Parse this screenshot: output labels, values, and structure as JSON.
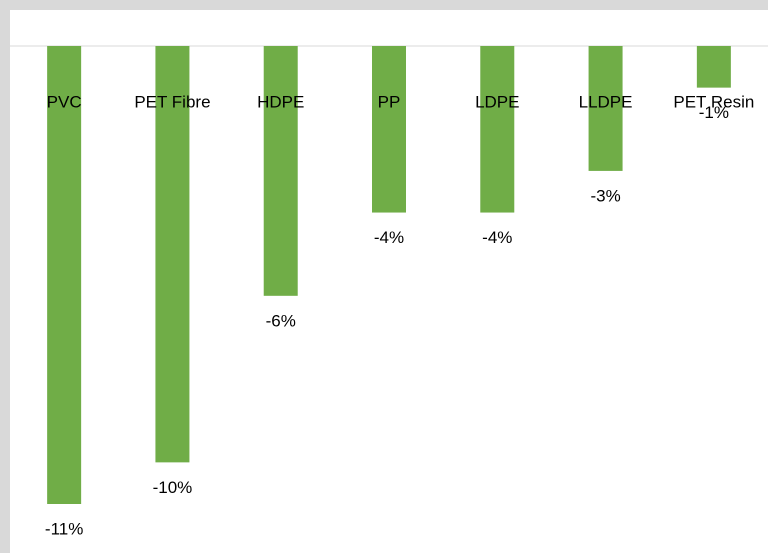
{
  "chart_data": {
    "type": "bar",
    "categories": [
      "PVC",
      "PET Fibre",
      "HDPE",
      "PP",
      "LDPE",
      "LLDPE",
      "PET Resin"
    ],
    "values": [
      -11,
      -10,
      -6,
      -4,
      -4,
      -3,
      -1
    ],
    "value_labels": [
      "-11%",
      "-10%",
      "-6%",
      "-4%",
      "-4%",
      "-3%",
      "-1%"
    ],
    "color": "#70ad47"
  }
}
